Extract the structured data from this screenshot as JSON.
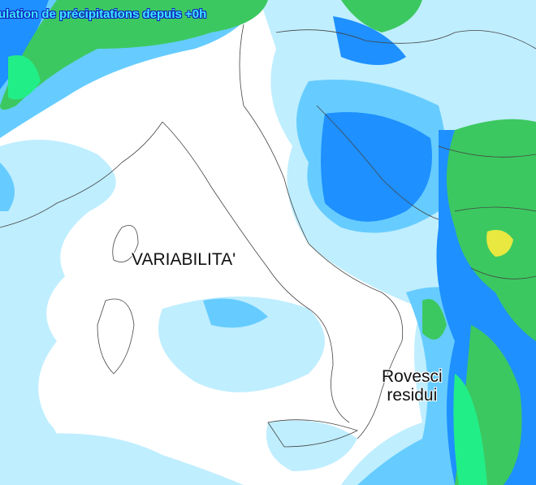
{
  "map": {
    "title": "ulation de précipitations depuis +0h",
    "annotations": {
      "center": "VARIABILITA'",
      "southeast_line1": "Rovesci",
      "southeast_line2": "residui"
    },
    "colors": {
      "light_blue": "#bfeeff",
      "blue": "#66ccff",
      "dark_blue": "#1e90ff",
      "green": "#3cc860",
      "bright_green": "#22ee88",
      "yellow": "#e8e840"
    }
  }
}
